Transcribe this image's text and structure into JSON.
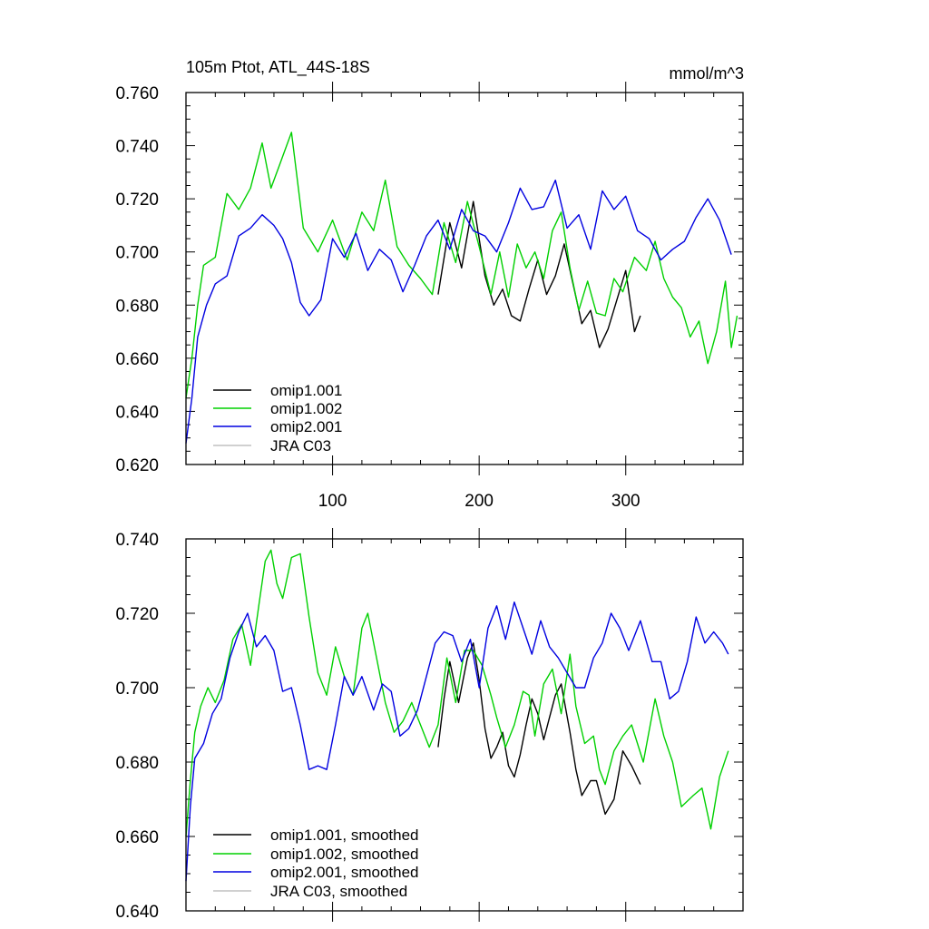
{
  "chart_data": [
    {
      "type": "line",
      "title": "105m Ptot, ATL_44S-18S",
      "units": "mmol/m^3",
      "ylim": [
        0.62,
        0.76
      ],
      "xlim": [
        0,
        380
      ],
      "ytick_labels": [
        "0.620",
        "0.640",
        "0.660",
        "0.680",
        "0.700",
        "0.720",
        "0.740",
        "0.760"
      ],
      "xtick_labels": [
        "100",
        "200",
        "300"
      ],
      "legend": [
        "omip1.001",
        "omip1.002",
        "omip2.001",
        "JRA C03"
      ],
      "legend_position": "bottom-left",
      "series": [
        {
          "name": "omip1.001",
          "color": "#000000",
          "x": [
            172,
            180,
            188,
            196,
            204,
            210,
            216,
            222,
            228,
            234,
            240,
            246,
            252,
            258,
            264,
            270,
            276,
            282,
            288,
            294,
            300,
            306,
            310
          ],
          "values": [
            0.684,
            0.711,
            0.694,
            0.719,
            0.691,
            0.68,
            0.686,
            0.676,
            0.674,
            0.686,
            0.697,
            0.684,
            0.691,
            0.703,
            0.688,
            0.673,
            0.678,
            0.664,
            0.671,
            0.682,
            0.693,
            0.67,
            0.676
          ]
        },
        {
          "name": "omip1.002",
          "color": "#00d000",
          "x": [
            0,
            4,
            8,
            12,
            20,
            28,
            36,
            44,
            52,
            58,
            64,
            72,
            80,
            90,
            100,
            110,
            120,
            128,
            136,
            144,
            152,
            160,
            168,
            176,
            184,
            192,
            200,
            208,
            214,
            220,
            226,
            232,
            238,
            244,
            250,
            256,
            262,
            268,
            274,
            280,
            286,
            292,
            298,
            306,
            314,
            320,
            326,
            332,
            338,
            344,
            350,
            356,
            362,
            368,
            372,
            376
          ],
          "values": [
            0.645,
            0.66,
            0.68,
            0.695,
            0.698,
            0.722,
            0.716,
            0.724,
            0.741,
            0.724,
            0.733,
            0.745,
            0.709,
            0.7,
            0.712,
            0.697,
            0.715,
            0.708,
            0.727,
            0.702,
            0.695,
            0.69,
            0.684,
            0.711,
            0.696,
            0.719,
            0.702,
            0.684,
            0.7,
            0.683,
            0.703,
            0.694,
            0.7,
            0.69,
            0.708,
            0.715,
            0.694,
            0.678,
            0.689,
            0.677,
            0.676,
            0.69,
            0.685,
            0.698,
            0.693,
            0.704,
            0.69,
            0.683,
            0.679,
            0.668,
            0.674,
            0.658,
            0.67,
            0.689,
            0.664,
            0.676
          ]
        },
        {
          "name": "omip2.001",
          "color": "#0000e0",
          "x": [
            0,
            4,
            8,
            14,
            20,
            28,
            36,
            44,
            52,
            60,
            66,
            72,
            78,
            84,
            92,
            100,
            108,
            116,
            124,
            132,
            140,
            148,
            156,
            164,
            172,
            180,
            188,
            196,
            204,
            212,
            220,
            228,
            236,
            244,
            252,
            260,
            268,
            276,
            284,
            292,
            300,
            308,
            316,
            324,
            332,
            340,
            348,
            356,
            364,
            372
          ],
          "values": [
            0.628,
            0.645,
            0.668,
            0.68,
            0.688,
            0.691,
            0.706,
            0.709,
            0.714,
            0.71,
            0.705,
            0.696,
            0.681,
            0.676,
            0.682,
            0.705,
            0.698,
            0.707,
            0.693,
            0.701,
            0.697,
            0.685,
            0.695,
            0.706,
            0.712,
            0.701,
            0.716,
            0.708,
            0.706,
            0.7,
            0.711,
            0.724,
            0.716,
            0.717,
            0.727,
            0.709,
            0.714,
            0.701,
            0.723,
            0.716,
            0.721,
            0.708,
            0.705,
            0.697,
            0.701,
            0.704,
            0.713,
            0.72,
            0.712,
            0.699
          ]
        },
        {
          "name": "JRA C03",
          "color": "#c0c0c0",
          "x": [],
          "values": []
        }
      ]
    },
    {
      "type": "line",
      "title": "",
      "ylim": [
        0.64,
        0.74
      ],
      "xlim": [
        0,
        380
      ],
      "ytick_labels": [
        "0.640",
        "0.660",
        "0.680",
        "0.700",
        "0.720",
        "0.740"
      ],
      "xtick_labels": [],
      "legend": [
        "omip1.001, smoothed",
        "omip1.002, smoothed",
        "omip2.001, smoothed",
        "JRA C03, smoothed"
      ],
      "legend_position": "bottom-left",
      "series": [
        {
          "name": "omip1.001, smoothed",
          "color": "#000000",
          "x": [
            172,
            176,
            180,
            186,
            192,
            196,
            200,
            204,
            208,
            212,
            216,
            220,
            224,
            228,
            232,
            236,
            240,
            244,
            248,
            252,
            256,
            262,
            266,
            270,
            276,
            280,
            286,
            292,
            298,
            304,
            310
          ],
          "values": [
            0.684,
            0.697,
            0.707,
            0.696,
            0.708,
            0.712,
            0.702,
            0.689,
            0.681,
            0.684,
            0.688,
            0.679,
            0.676,
            0.682,
            0.69,
            0.697,
            0.693,
            0.686,
            0.692,
            0.698,
            0.701,
            0.688,
            0.678,
            0.671,
            0.675,
            0.675,
            0.666,
            0.67,
            0.683,
            0.679,
            0.674
          ]
        },
        {
          "name": "omip1.002, smoothed",
          "color": "#00d000",
          "x": [
            0,
            3,
            6,
            10,
            15,
            20,
            26,
            32,
            38,
            44,
            50,
            54,
            58,
            62,
            66,
            72,
            78,
            84,
            90,
            96,
            102,
            108,
            114,
            120,
            124,
            130,
            136,
            142,
            148,
            154,
            160,
            166,
            172,
            178,
            184,
            190,
            196,
            202,
            208,
            212,
            218,
            224,
            230,
            234,
            238,
            244,
            250,
            256,
            262,
            266,
            272,
            278,
            282,
            286,
            292,
            298,
            304,
            312,
            320,
            326,
            332,
            338,
            346,
            352,
            358,
            364,
            370
          ],
          "values": [
            0.66,
            0.675,
            0.688,
            0.695,
            0.7,
            0.696,
            0.702,
            0.713,
            0.717,
            0.706,
            0.723,
            0.734,
            0.737,
            0.728,
            0.724,
            0.735,
            0.736,
            0.719,
            0.704,
            0.698,
            0.711,
            0.703,
            0.698,
            0.716,
            0.72,
            0.708,
            0.696,
            0.688,
            0.691,
            0.696,
            0.69,
            0.684,
            0.69,
            0.708,
            0.696,
            0.71,
            0.71,
            0.706,
            0.698,
            0.692,
            0.684,
            0.69,
            0.699,
            0.698,
            0.687,
            0.701,
            0.705,
            0.693,
            0.709,
            0.695,
            0.685,
            0.687,
            0.678,
            0.674,
            0.683,
            0.687,
            0.69,
            0.68,
            0.697,
            0.687,
            0.68,
            0.668,
            0.671,
            0.673,
            0.662,
            0.676,
            0.683
          ]
        },
        {
          "name": "omip2.001, smoothed",
          "color": "#0000e0",
          "x": [
            0,
            3,
            6,
            12,
            18,
            24,
            30,
            36,
            42,
            48,
            54,
            60,
            66,
            72,
            78,
            84,
            90,
            96,
            102,
            108,
            114,
            120,
            128,
            134,
            140,
            146,
            152,
            158,
            164,
            170,
            176,
            182,
            188,
            194,
            200,
            206,
            212,
            218,
            224,
            230,
            236,
            242,
            248,
            254,
            260,
            266,
            272,
            278,
            284,
            290,
            296,
            302,
            310,
            318,
            324,
            330,
            336,
            342,
            348,
            354,
            360,
            366,
            370
          ],
          "values": [
            0.648,
            0.668,
            0.681,
            0.685,
            0.693,
            0.697,
            0.708,
            0.715,
            0.72,
            0.711,
            0.714,
            0.71,
            0.699,
            0.7,
            0.69,
            0.678,
            0.679,
            0.678,
            0.69,
            0.703,
            0.698,
            0.703,
            0.694,
            0.701,
            0.699,
            0.687,
            0.689,
            0.694,
            0.703,
            0.712,
            0.715,
            0.714,
            0.707,
            0.713,
            0.7,
            0.716,
            0.722,
            0.713,
            0.723,
            0.716,
            0.709,
            0.718,
            0.711,
            0.708,
            0.704,
            0.7,
            0.7,
            0.708,
            0.712,
            0.72,
            0.716,
            0.71,
            0.718,
            0.707,
            0.707,
            0.697,
            0.699,
            0.707,
            0.719,
            0.712,
            0.715,
            0.712,
            0.709
          ]
        },
        {
          "name": "JRA C03, smoothed",
          "color": "#c0c0c0",
          "x": [],
          "values": []
        }
      ]
    }
  ]
}
